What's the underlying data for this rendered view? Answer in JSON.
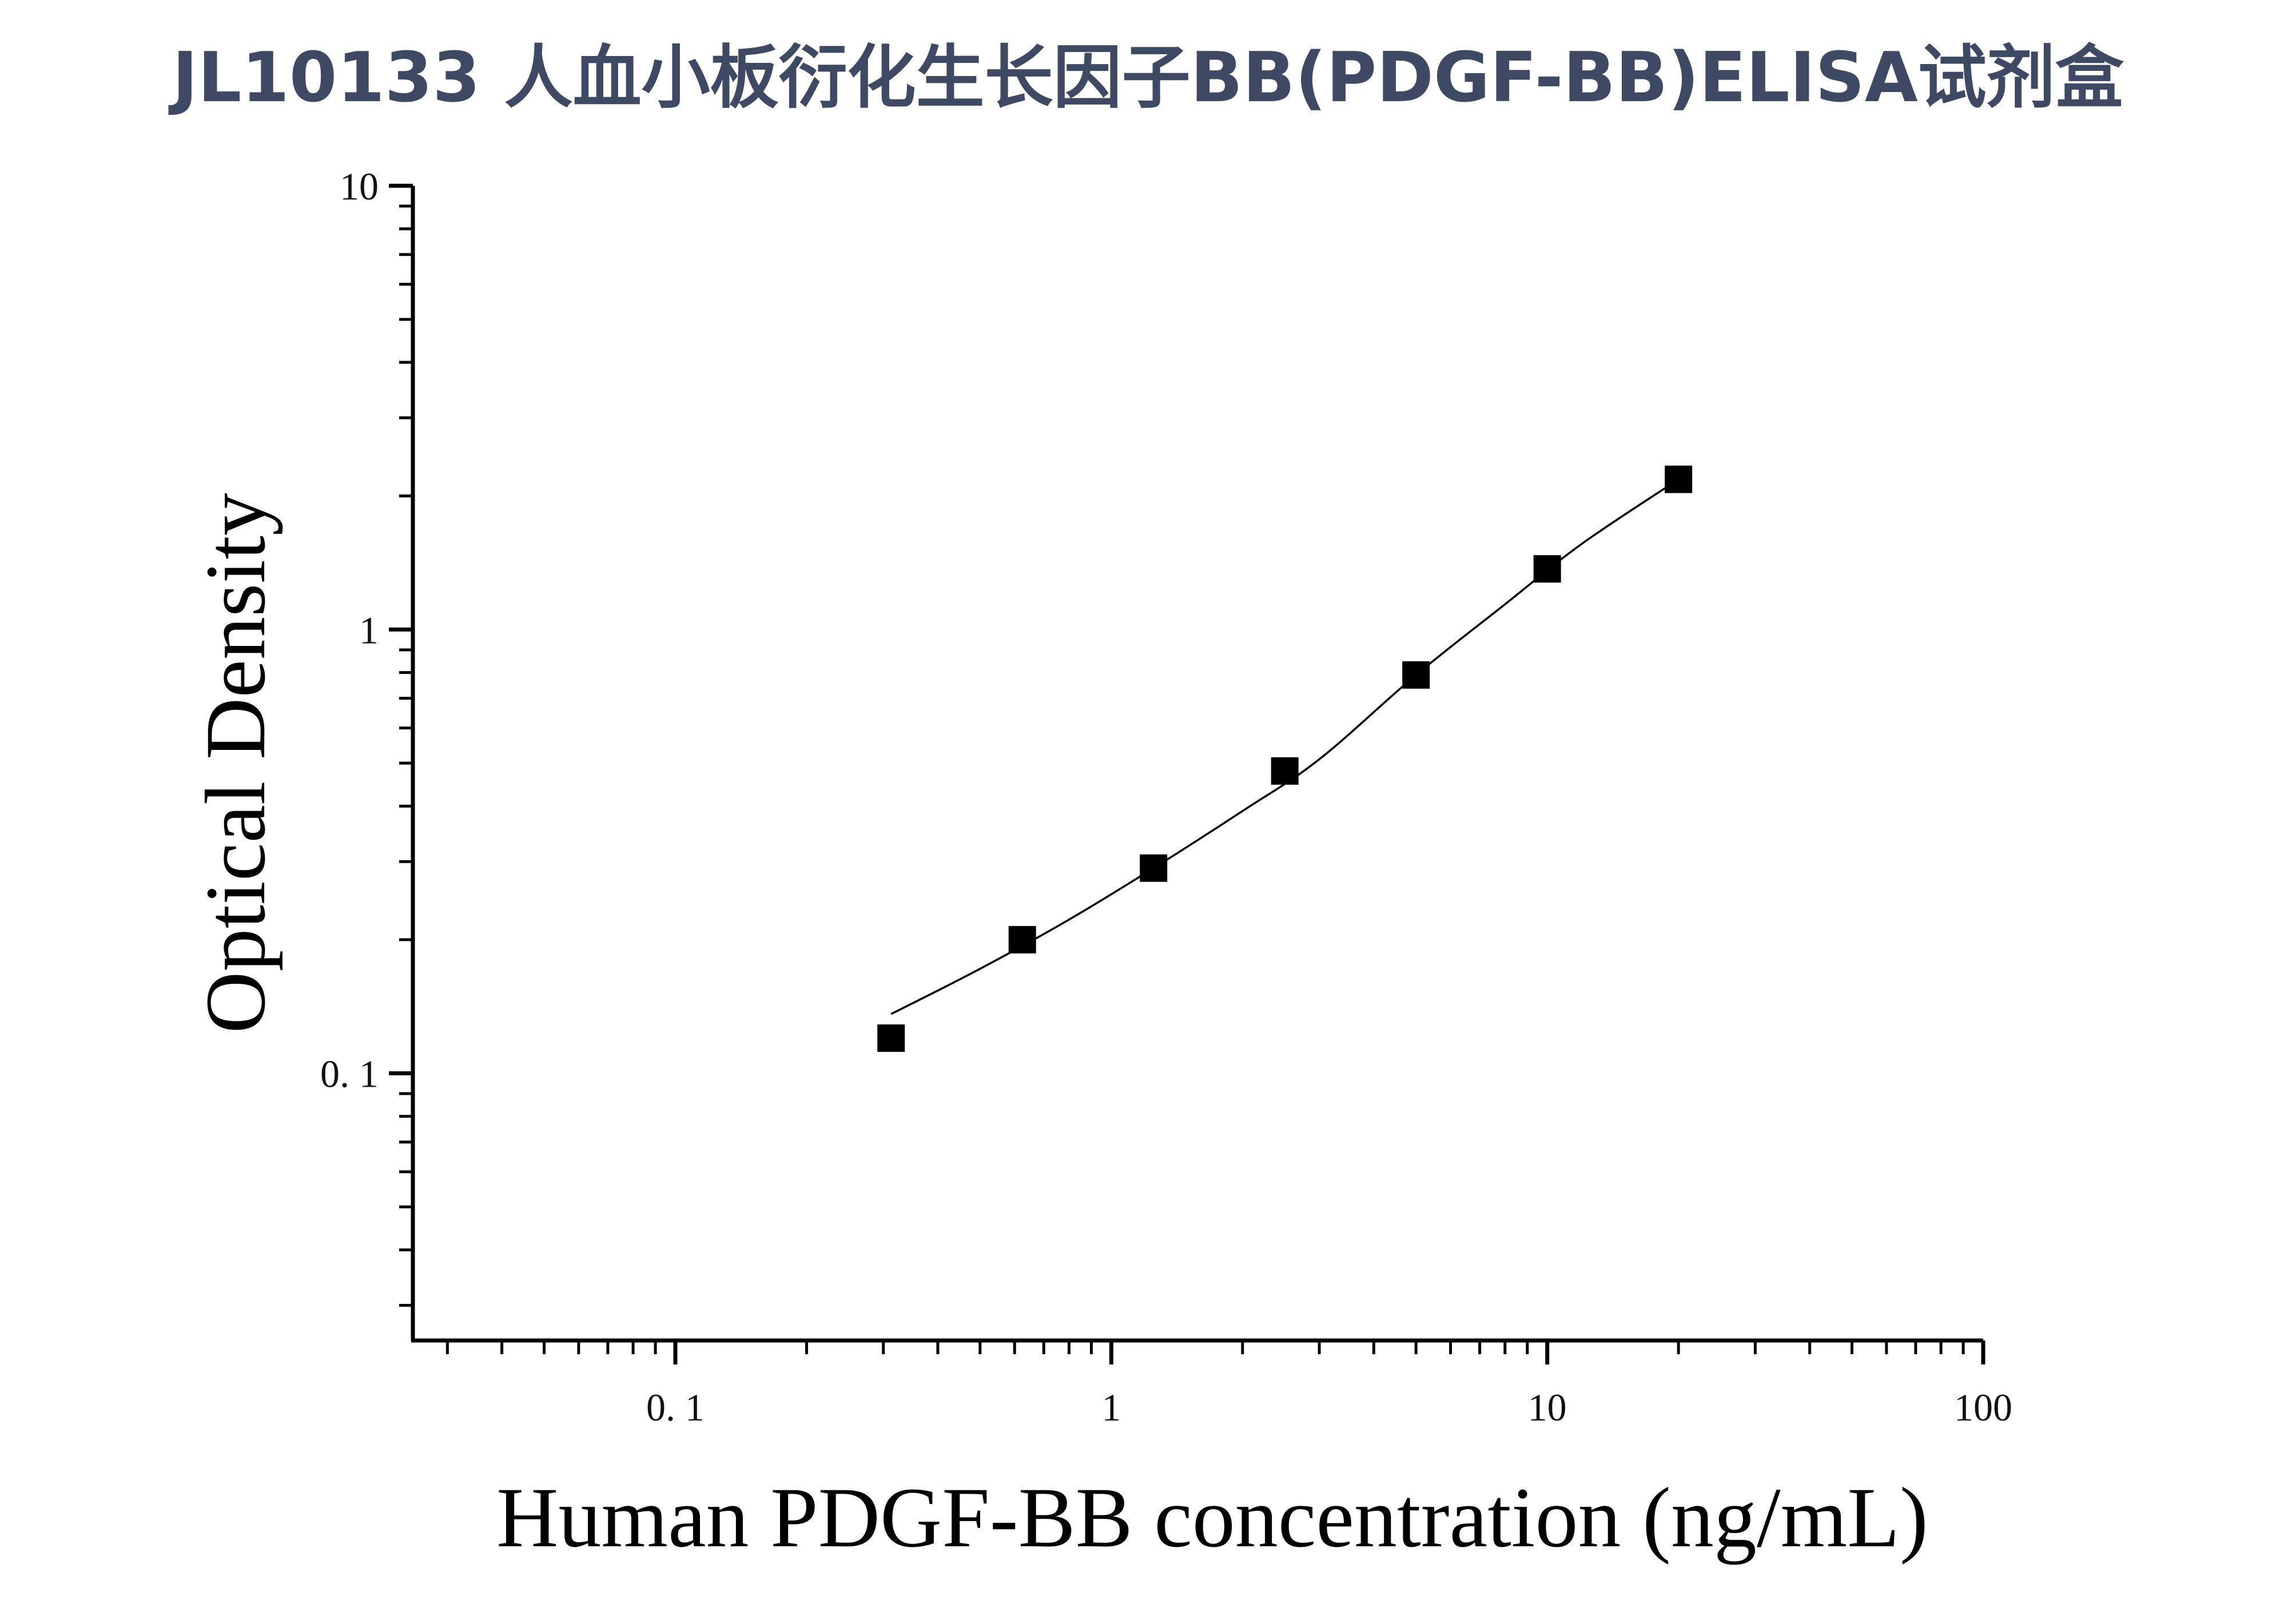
{
  "header": {
    "title": "JL10133 人血小板衍化生长因子BB(PDGF-BB)ELISA试剂盒"
  },
  "chart_data": {
    "type": "scatter",
    "title": "JL10133 人血小板衍化生长因子BB(PDGF-BB)ELISA试剂盒",
    "xlabel": "Human PDGF-BB concentration (ng/mL)",
    "ylabel": "Optical Density",
    "x_scale": "log",
    "y_scale": "log",
    "xlim": [
      0.025,
      100
    ],
    "ylim": [
      0.025,
      10
    ],
    "x_ticks": [
      0.1,
      1,
      10,
      100
    ],
    "x_tick_labels": [
      "0. 1",
      "1",
      "10",
      "100"
    ],
    "y_ticks": [
      0.1,
      1,
      10
    ],
    "y_tick_labels": [
      "0. 1",
      "1",
      "10"
    ],
    "grid": false,
    "legend": "none",
    "series": [
      {
        "x": [
          0.3125,
          0.625,
          1.25,
          2.5,
          5,
          10,
          20
        ],
        "y": [
          0.12,
          0.2,
          0.29,
          0.48,
          0.79,
          1.37,
          2.18
        ]
      }
    ],
    "fit_curve": {
      "x": [
        0.3125,
        0.5,
        0.8,
        1.25,
        2.0,
        3.0,
        5.0,
        8.0,
        12.0,
        20.0
      ],
      "y": [
        0.136,
        0.172,
        0.222,
        0.29,
        0.39,
        0.51,
        0.79,
        1.14,
        1.56,
        2.18
      ]
    },
    "colors": {
      "marker": "#000000",
      "axis": "#000000",
      "title": "#3e4a63"
    }
  }
}
